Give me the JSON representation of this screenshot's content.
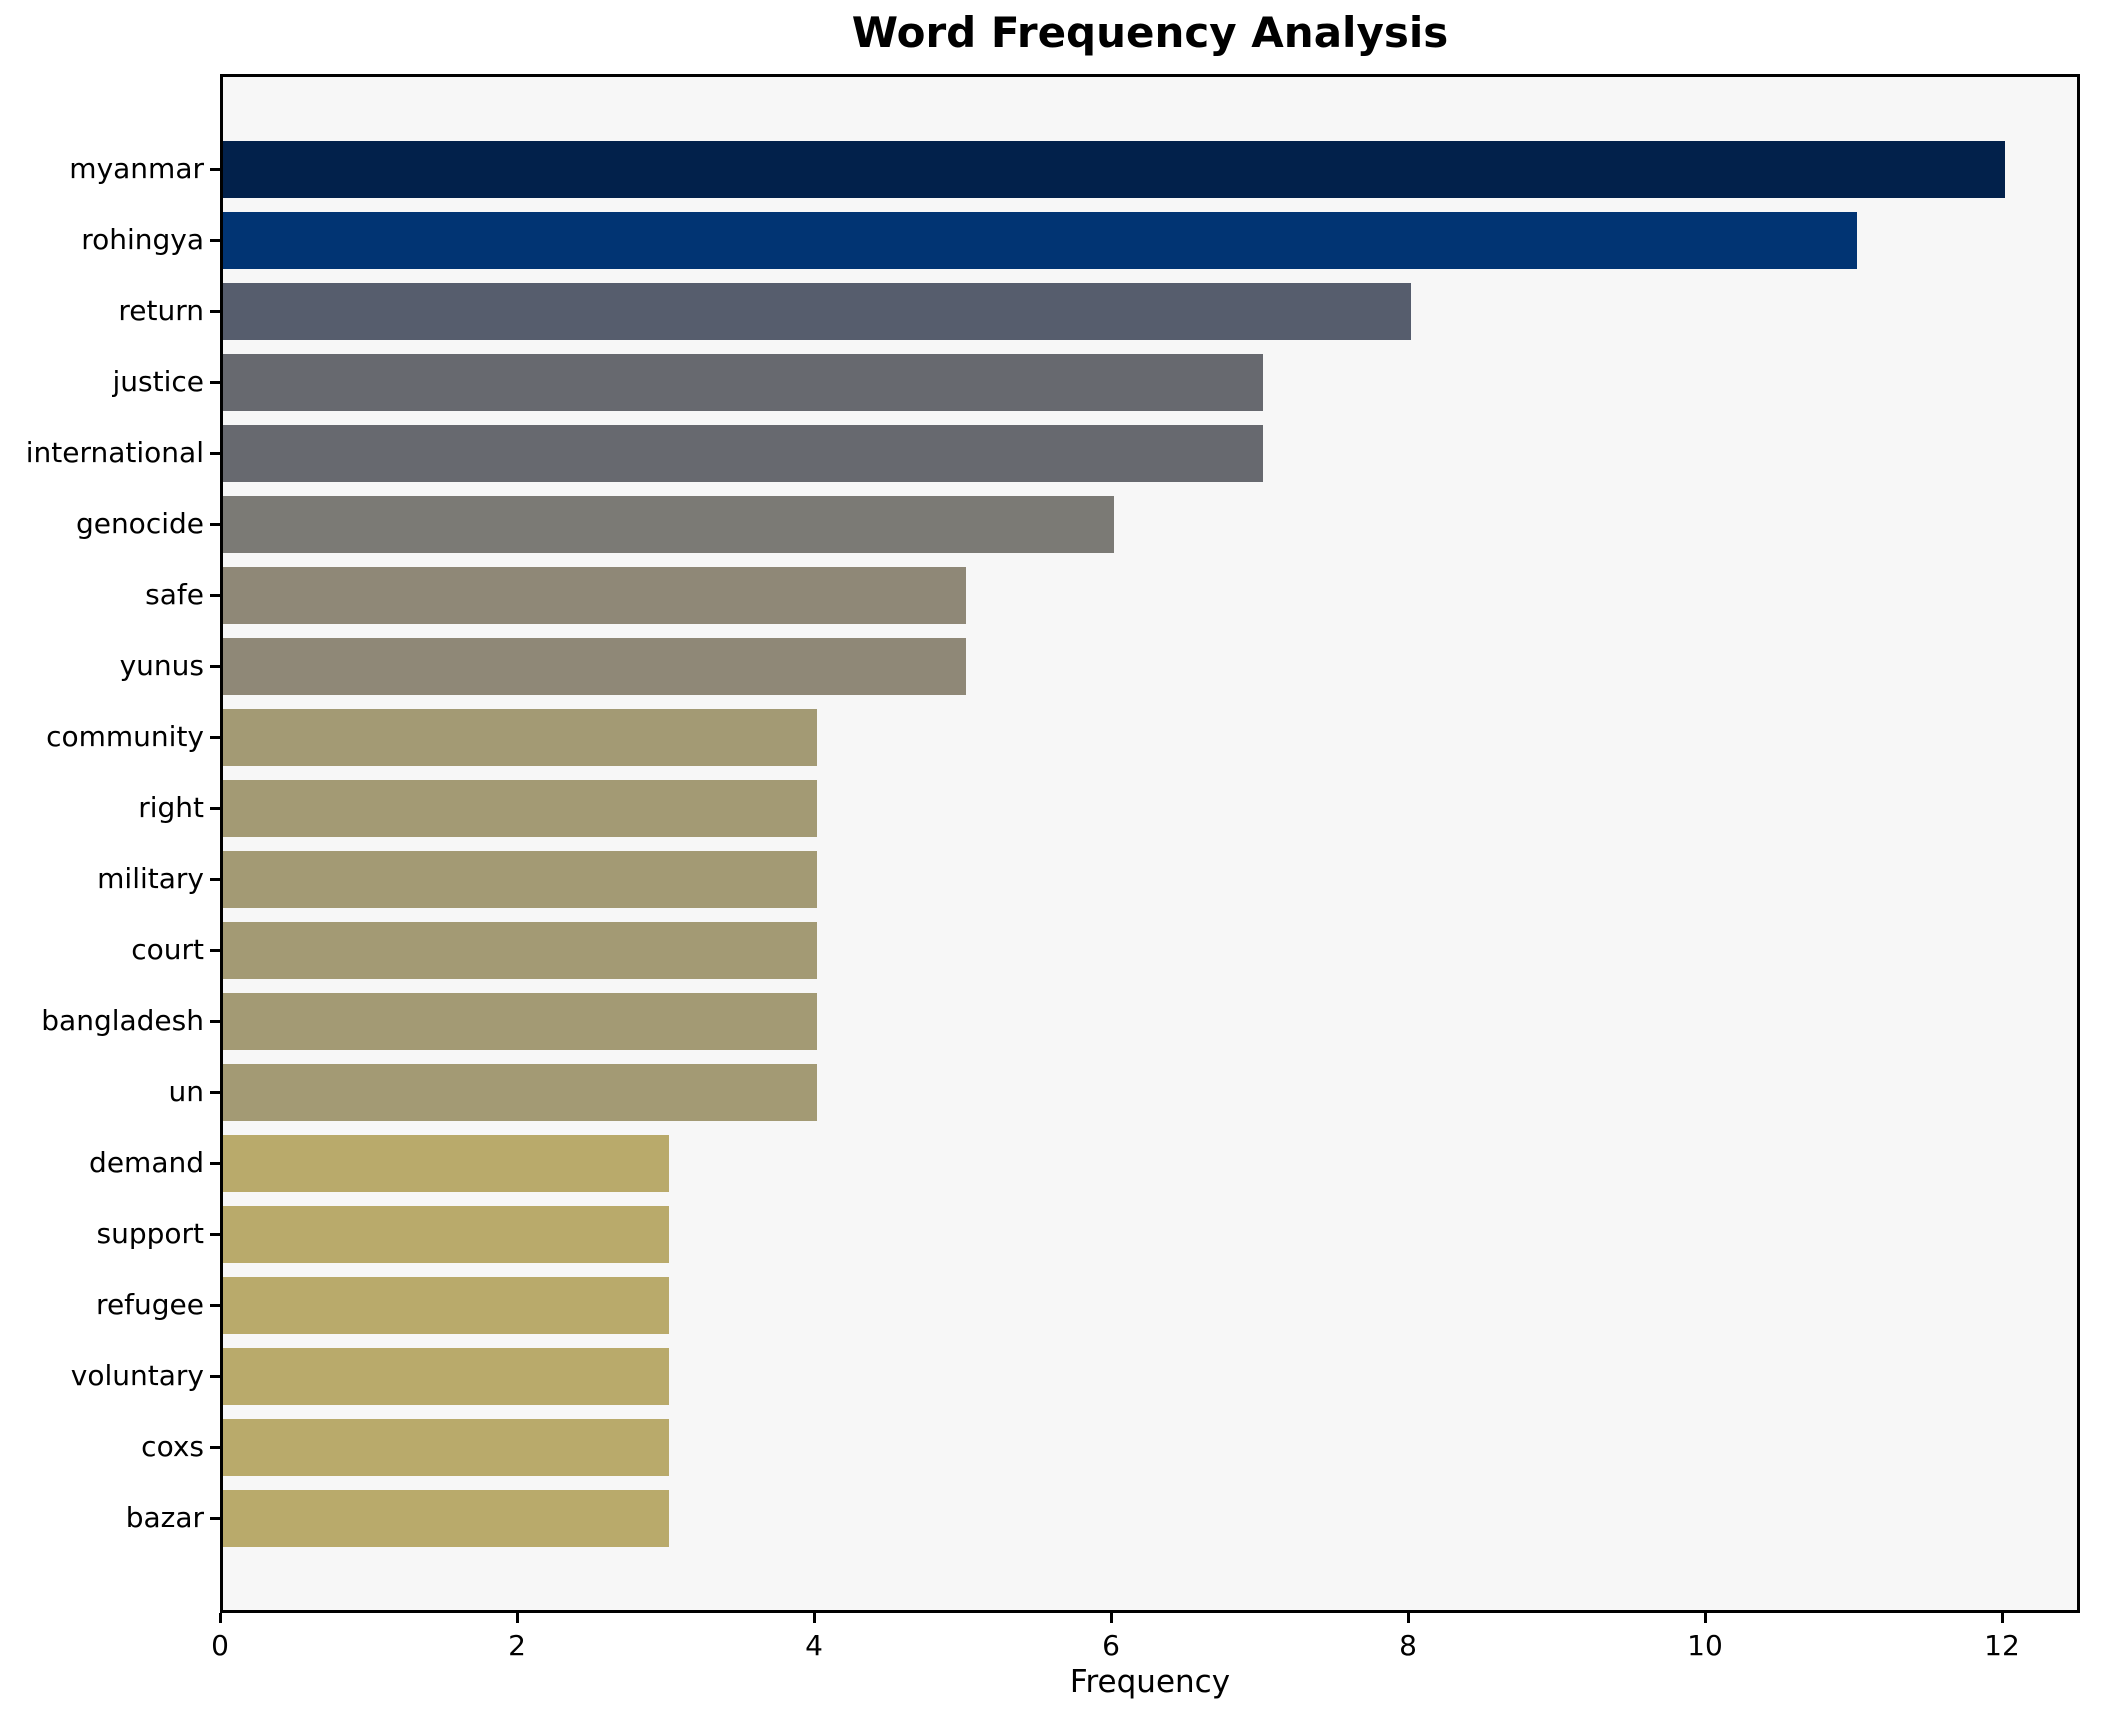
{
  "chart_data": {
    "type": "bar",
    "orientation": "horizontal",
    "title": "Word Frequency Analysis",
    "xlabel": "Frequency",
    "ylabel": "",
    "categories": [
      "myanmar",
      "rohingya",
      "return",
      "justice",
      "international",
      "genocide",
      "safe",
      "yunus",
      "community",
      "right",
      "military",
      "court",
      "bangladesh",
      "un",
      "demand",
      "support",
      "refugee",
      "voluntary",
      "coxs",
      "bazar"
    ],
    "values": [
      12,
      11,
      8,
      7,
      7,
      6,
      5,
      5,
      4,
      4,
      4,
      4,
      4,
      4,
      3,
      3,
      3,
      3,
      3,
      3
    ],
    "bar_colors": [
      "#02214b",
      "#013473",
      "#565d6d",
      "#67696f",
      "#67696f",
      "#7b7a75",
      "#8f8877",
      "#8f8877",
      "#a39a74",
      "#a39a74",
      "#a39a74",
      "#a39a74",
      "#a39a74",
      "#a39a74",
      "#b9aa6b",
      "#b9aa6b",
      "#b9aa6b",
      "#b9aa6b",
      "#b9aa6b",
      "#b9aa6b"
    ],
    "x_ticks": [
      "0",
      "2",
      "4",
      "6",
      "8",
      "10",
      "12"
    ],
    "x_tick_values": [
      0,
      2,
      4,
      6,
      8,
      10,
      12
    ],
    "xlim": [
      0,
      12.6
    ],
    "grid": false,
    "legend": null,
    "colors": {
      "figure_bg": "#ffffff",
      "plot_bg": "#f7f7f7",
      "spine": "#000000",
      "text": "#000000"
    }
  }
}
